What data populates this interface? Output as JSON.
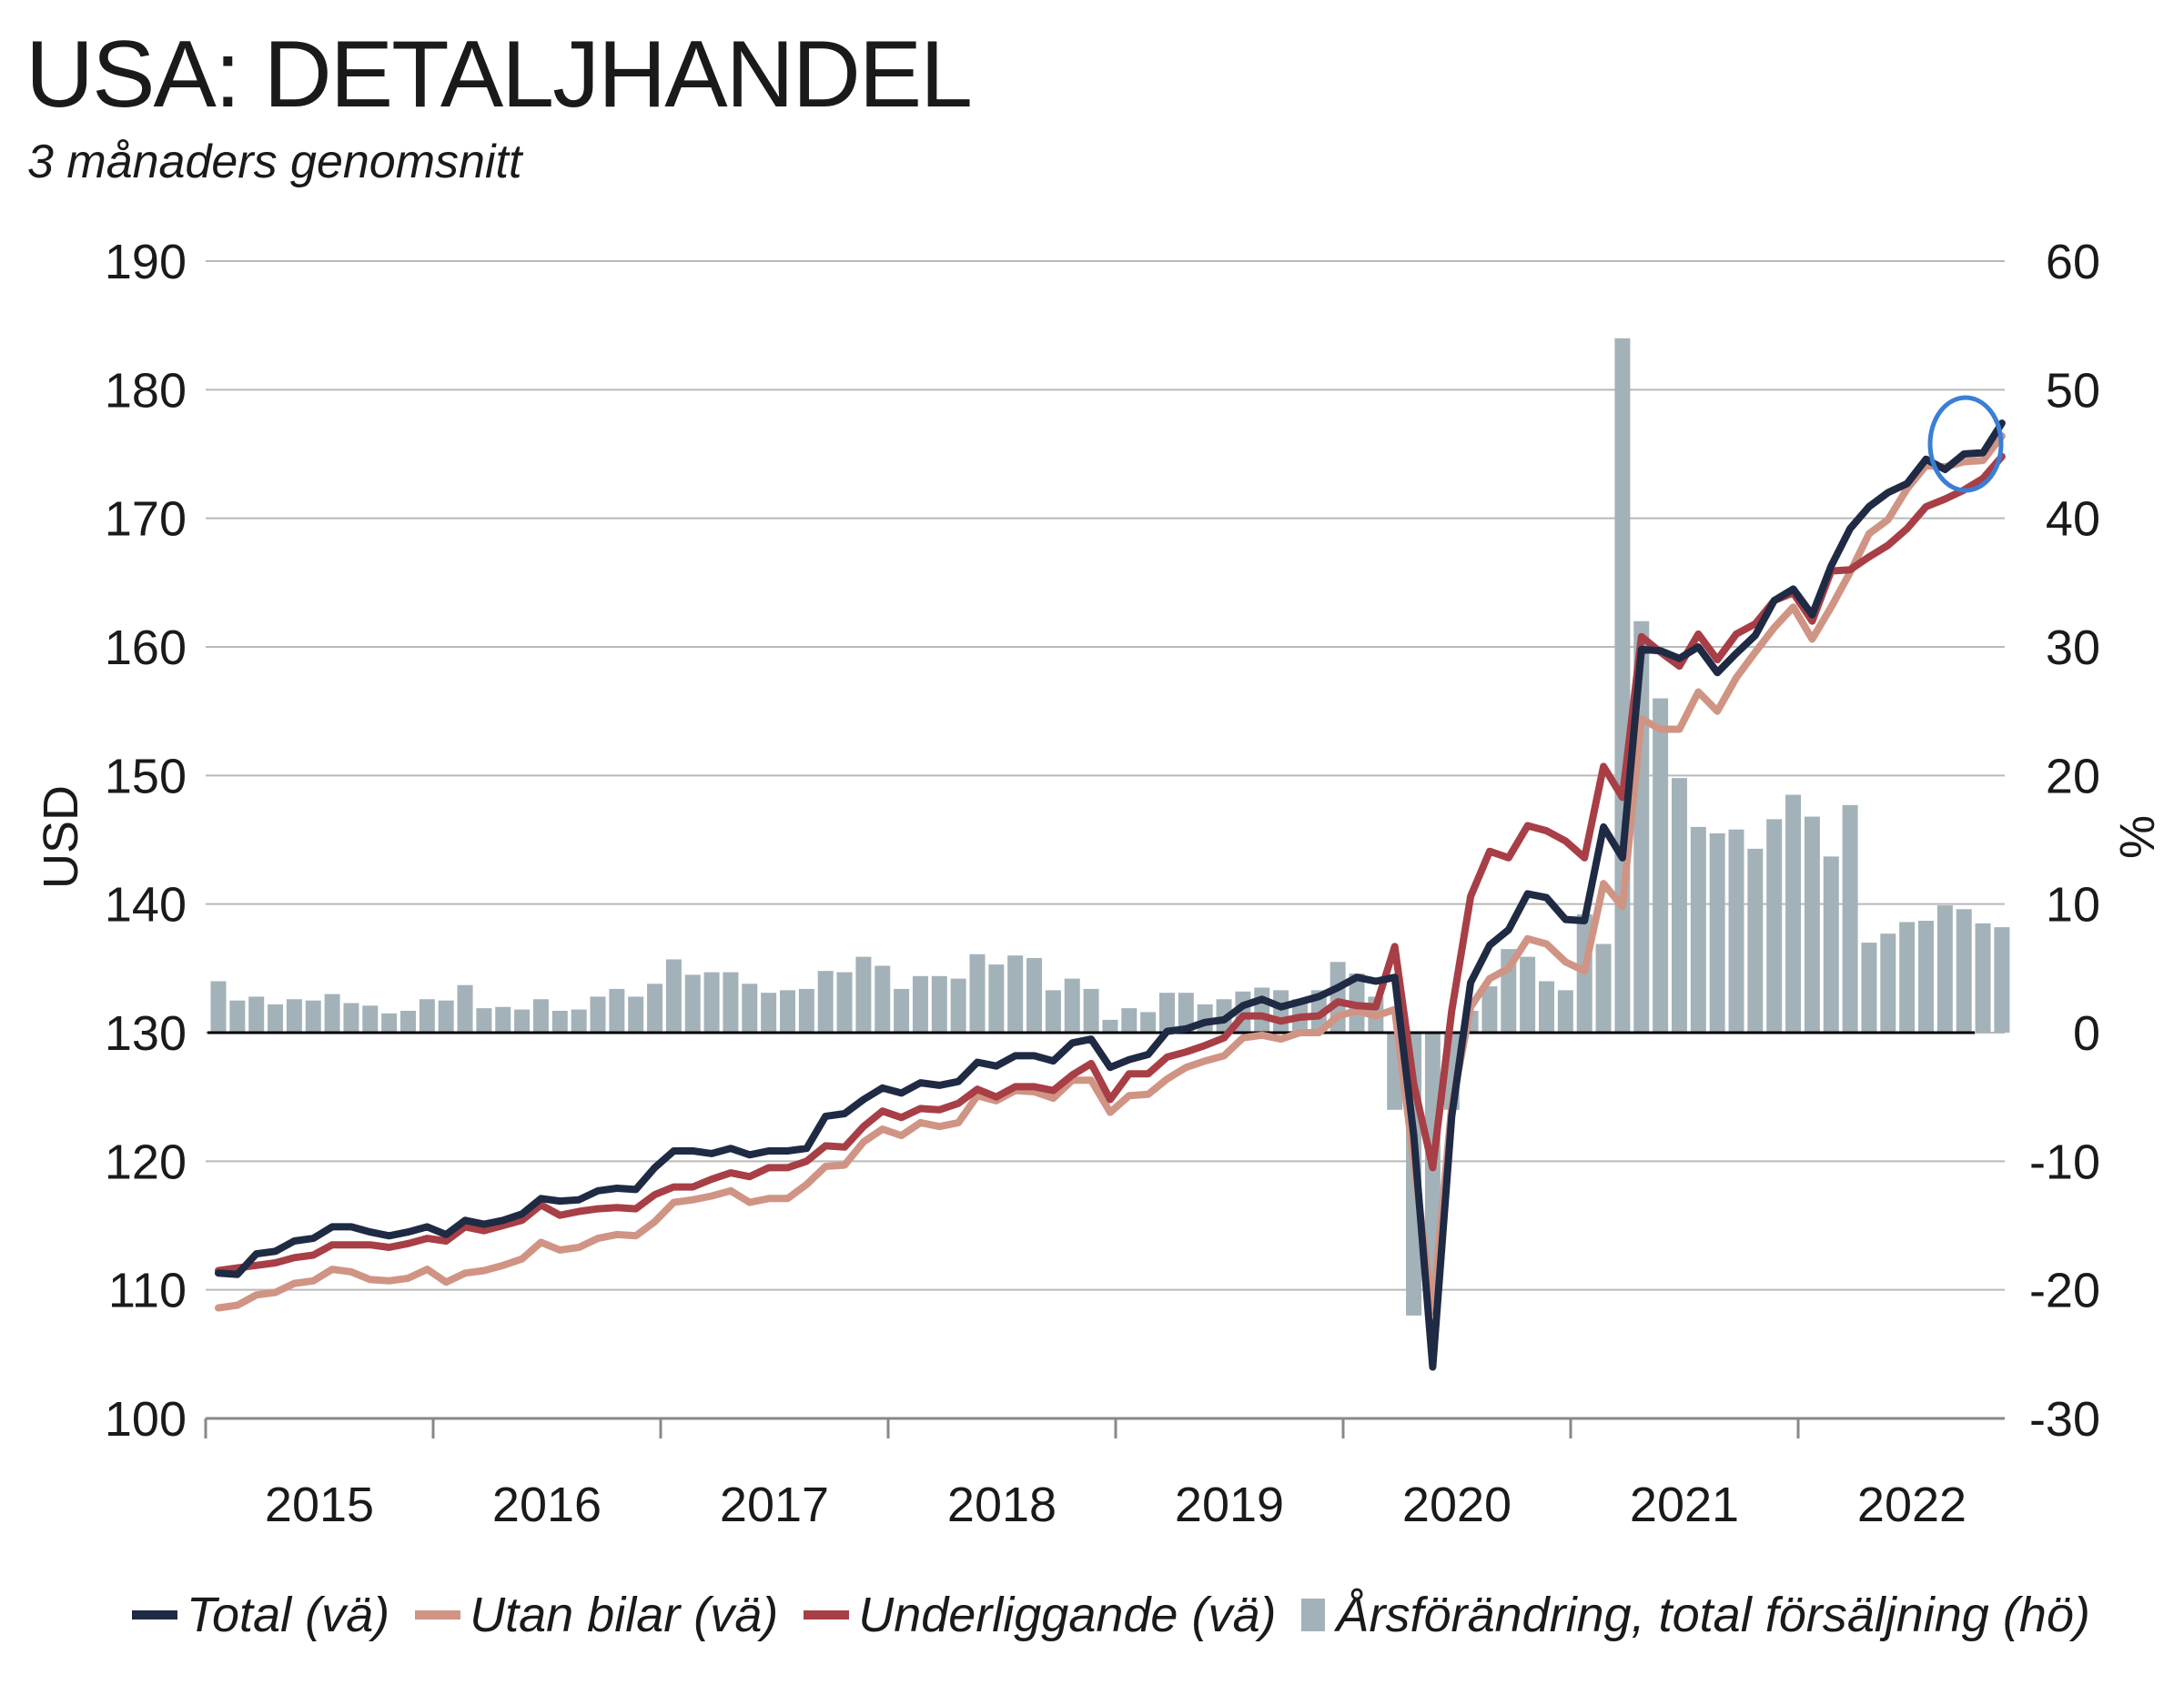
{
  "title": "USA: DETALJHANDEL",
  "subtitle": "3 månaders genomsnitt",
  "colors": {
    "total": "#1f2a44",
    "utan_bilar": "#d09484",
    "underliggande": "#a83e46",
    "bars": "#a3b2b9",
    "highlight_circle": "#3a7fd5",
    "grid": "#b9b9b9"
  },
  "chart_data": {
    "type": "line",
    "x_start": "2015-01",
    "x_frequency": "monthly",
    "x_ticks": [
      "2015",
      "2016",
      "2017",
      "2018",
      "2019",
      "2020",
      "2021",
      "2022"
    ],
    "ylabel_left": "USD",
    "ylabel_right": "%",
    "ylim_left": [
      100,
      190
    ],
    "ylim_right": [
      -30,
      60
    ],
    "yticks_left": [
      "190",
      "180",
      "170",
      "160",
      "150",
      "140",
      "130",
      "120",
      "110",
      "100"
    ],
    "yticks_right": [
      "60",
      "50",
      "40",
      "30",
      "20",
      "10",
      "0",
      "-10",
      "-20",
      "-30"
    ],
    "grid": true,
    "legend_position": "bottom",
    "series": [
      {
        "name": "Total (vä)",
        "axis": "left",
        "type": "line",
        "color": "#1f2a44",
        "values": [
          111.3,
          111.2,
          112.8,
          113.0,
          113.8,
          114.0,
          114.9,
          114.9,
          114.5,
          114.2,
          114.5,
          114.9,
          114.3,
          115.4,
          115.1,
          115.4,
          115.9,
          117.1,
          116.9,
          117.0,
          117.7,
          117.9,
          117.8,
          119.5,
          120.8,
          120.8,
          120.6,
          121.0,
          120.5,
          120.8,
          120.8,
          121.0,
          123.5,
          123.7,
          124.8,
          125.7,
          125.3,
          126.1,
          125.9,
          126.2,
          127.7,
          127.4,
          128.2,
          128.2,
          127.8,
          129.2,
          129.5,
          127.3,
          127.9,
          128.3,
          130.1,
          130.3,
          130.8,
          131.0,
          132.1,
          132.6,
          132.0,
          132.4,
          132.8,
          133.5,
          134.3,
          134.0,
          134.3,
          122.0,
          104.0,
          123.5,
          133.9,
          136.8,
          138.0,
          140.8,
          140.5,
          138.8,
          138.7,
          146.0,
          143.6,
          159.8,
          159.7,
          159.1,
          160.0,
          158.0,
          159.5,
          160.9,
          163.6,
          164.5,
          162.5,
          166.3,
          169.2,
          170.9,
          172.0,
          172.7,
          174.6,
          173.8,
          175.0,
          175.1,
          177.4
        ]
      },
      {
        "name": "Utan bilar (vä)",
        "axis": "left",
        "type": "line",
        "color": "#d09484",
        "values": [
          108.6,
          108.8,
          109.6,
          109.8,
          110.5,
          110.7,
          111.6,
          111.4,
          110.8,
          110.7,
          110.9,
          111.6,
          110.6,
          111.3,
          111.5,
          111.9,
          112.4,
          113.7,
          113.1,
          113.3,
          114.0,
          114.3,
          114.2,
          115.3,
          116.8,
          117.0,
          117.3,
          117.7,
          116.8,
          117.1,
          117.1,
          118.2,
          119.6,
          119.7,
          121.5,
          122.5,
          122.0,
          123.0,
          122.7,
          123.0,
          125.1,
          124.7,
          125.5,
          125.4,
          124.9,
          126.3,
          126.3,
          123.8,
          125.1,
          125.2,
          126.4,
          127.3,
          127.8,
          128.2,
          129.6,
          129.8,
          129.5,
          130.0,
          130.0,
          131.3,
          131.7,
          131.3,
          131.8,
          120.0,
          108.3,
          124.3,
          132.0,
          134.2,
          135.0,
          137.3,
          136.9,
          135.5,
          134.8,
          141.6,
          139.8,
          154.4,
          153.6,
          153.6,
          156.5,
          155.0,
          157.6,
          159.6,
          161.5,
          163.1,
          160.6,
          163.1,
          165.8,
          168.8,
          169.9,
          172.3,
          174.1,
          174.0,
          174.4,
          174.5,
          176.4
        ]
      },
      {
        "name": "Underliggande (vä)",
        "axis": "left",
        "type": "line",
        "color": "#a83e46",
        "values": [
          111.5,
          111.7,
          111.9,
          112.1,
          112.5,
          112.7,
          113.5,
          113.5,
          113.5,
          113.3,
          113.6,
          114.0,
          113.8,
          114.9,
          114.6,
          115.0,
          115.4,
          116.6,
          115.8,
          116.1,
          116.3,
          116.4,
          116.3,
          117.4,
          118.0,
          118.0,
          118.6,
          119.1,
          118.8,
          119.5,
          119.5,
          120.0,
          121.2,
          121.1,
          122.7,
          123.9,
          123.4,
          124.1,
          124.0,
          124.5,
          125.6,
          125.0,
          125.8,
          125.8,
          125.5,
          126.7,
          127.6,
          124.8,
          126.8,
          126.8,
          128.1,
          128.5,
          129.0,
          129.6,
          131.3,
          131.3,
          130.9,
          131.2,
          131.3,
          132.4,
          132.1,
          132.0,
          136.7,
          126.0,
          119.5,
          131.7,
          140.6,
          144.1,
          143.6,
          146.1,
          145.7,
          144.9,
          143.6,
          150.7,
          148.3,
          160.8,
          159.6,
          158.5,
          161.0,
          159.0,
          161.0,
          161.8,
          163.6,
          164.2,
          162.0,
          165.9,
          166.0,
          167.0,
          167.9,
          169.2,
          170.9,
          171.5,
          172.2,
          173.1,
          174.8
        ]
      },
      {
        "name": "Årsförändring, total försäljning (hö)",
        "axis": "right",
        "type": "bar",
        "color": "#a3b2b9",
        "values": [
          4.0,
          2.5,
          2.8,
          2.2,
          2.6,
          2.5,
          3.0,
          2.3,
          2.1,
          1.5,
          1.7,
          2.6,
          2.5,
          3.7,
          1.9,
          2.0,
          1.8,
          2.6,
          1.7,
          1.8,
          2.8,
          3.4,
          2.8,
          3.8,
          5.7,
          4.5,
          4.7,
          4.7,
          3.8,
          3.1,
          3.3,
          3.4,
          4.8,
          4.7,
          5.9,
          5.2,
          3.4,
          4.4,
          4.4,
          4.2,
          6.1,
          5.3,
          6.0,
          5.8,
          3.3,
          4.2,
          3.4,
          1.0,
          1.9,
          1.6,
          3.1,
          3.1,
          2.2,
          2.6,
          3.2,
          3.5,
          3.3,
          2.6,
          3.3,
          5.5,
          4.6,
          2.8,
          -6.0,
          -22.0,
          -21.0,
          -6.0,
          1.7,
          3.6,
          6.5,
          5.9,
          4.0,
          3.3,
          9.2,
          6.9,
          54.0,
          32.0,
          26.0,
          19.8,
          16.0,
          15.5,
          15.8,
          14.3,
          16.6,
          18.5,
          16.8,
          13.7,
          17.7,
          7.0,
          7.7,
          8.6,
          8.7,
          9.9,
          9.6,
          8.5,
          8.2
        ]
      }
    ]
  }
}
